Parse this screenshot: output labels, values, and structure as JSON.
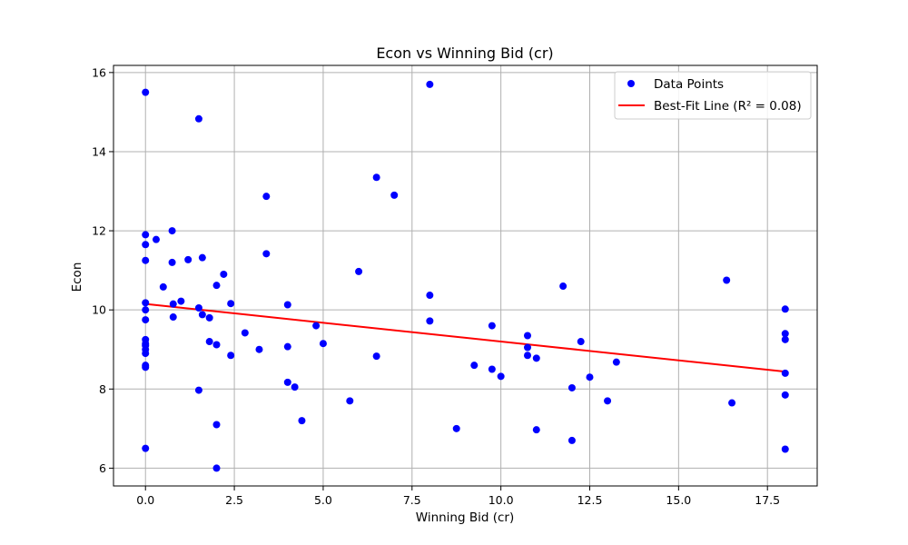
{
  "chart_data": {
    "type": "scatter",
    "title": "Econ vs Winning Bid (cr)",
    "xlabel": "Winning Bid (cr)",
    "ylabel": "Econ",
    "xlim": [
      -0.9,
      18.9
    ],
    "ylim": [
      5.55,
      16.18
    ],
    "xticks": [
      0,
      2.5,
      5,
      7.5,
      10,
      12.5,
      15,
      17.5
    ],
    "xtick_labels": [
      "0.0",
      "2.5",
      "5.0",
      "7.5",
      "10.0",
      "12.5",
      "15.0",
      "17.5"
    ],
    "yticks": [
      6,
      8,
      10,
      12,
      14,
      16
    ],
    "ytick_labels": [
      "6",
      "8",
      "10",
      "12",
      "14",
      "16"
    ],
    "grid": true,
    "legend_position": "top-right",
    "series": [
      {
        "name": "Data Points",
        "kind": "scatter",
        "color": "#0000ff",
        "points": [
          [
            0,
            15.5
          ],
          [
            0,
            11.9
          ],
          [
            0,
            11.65
          ],
          [
            0,
            11.25
          ],
          [
            0,
            10.18
          ],
          [
            0,
            10.0
          ],
          [
            0,
            9.75
          ],
          [
            0,
            9.25
          ],
          [
            0,
            9.15
          ],
          [
            0,
            9.1
          ],
          [
            0,
            9.0
          ],
          [
            0,
            8.9
          ],
          [
            0,
            8.6
          ],
          [
            0,
            8.55
          ],
          [
            0,
            6.5
          ],
          [
            0.3,
            11.78
          ],
          [
            0.5,
            10.58
          ],
          [
            0.75,
            12.0
          ],
          [
            0.75,
            11.2
          ],
          [
            0.78,
            10.15
          ],
          [
            0.78,
            9.82
          ],
          [
            1.0,
            10.22
          ],
          [
            1.2,
            11.27
          ],
          [
            1.5,
            14.83
          ],
          [
            1.5,
            10.05
          ],
          [
            1.5,
            7.97
          ],
          [
            1.6,
            11.32
          ],
          [
            1.6,
            9.88
          ],
          [
            1.8,
            9.8
          ],
          [
            1.8,
            9.2
          ],
          [
            2.0,
            10.62
          ],
          [
            2.0,
            9.12
          ],
          [
            2.0,
            7.1
          ],
          [
            2.0,
            6.0
          ],
          [
            2.2,
            10.9
          ],
          [
            2.4,
            10.16
          ],
          [
            2.4,
            8.85
          ],
          [
            2.8,
            9.42
          ],
          [
            3.2,
            9.0
          ],
          [
            3.4,
            12.87
          ],
          [
            3.4,
            11.42
          ],
          [
            4.0,
            10.13
          ],
          [
            4.0,
            9.07
          ],
          [
            4.0,
            8.17
          ],
          [
            4.2,
            8.05
          ],
          [
            4.4,
            7.2
          ],
          [
            4.8,
            9.6
          ],
          [
            5.0,
            9.15
          ],
          [
            5.75,
            7.7
          ],
          [
            6.0,
            10.97
          ],
          [
            6.5,
            13.35
          ],
          [
            6.5,
            8.83
          ],
          [
            7.0,
            12.9
          ],
          [
            8.0,
            15.7
          ],
          [
            8.0,
            10.37
          ],
          [
            8.0,
            9.72
          ],
          [
            8.75,
            7.0
          ],
          [
            9.25,
            8.6
          ],
          [
            9.75,
            9.6
          ],
          [
            9.75,
            8.5
          ],
          [
            10.0,
            8.32
          ],
          [
            10.75,
            9.35
          ],
          [
            10.75,
            9.05
          ],
          [
            10.75,
            8.85
          ],
          [
            11.0,
            8.78
          ],
          [
            11.0,
            6.97
          ],
          [
            11.75,
            10.6
          ],
          [
            12.0,
            8.03
          ],
          [
            12.0,
            6.7
          ],
          [
            12.25,
            9.2
          ],
          [
            12.5,
            8.3
          ],
          [
            13.0,
            7.7
          ],
          [
            13.25,
            8.68
          ],
          [
            16.35,
            10.75
          ],
          [
            16.5,
            7.65
          ],
          [
            18.0,
            10.02
          ],
          [
            18.0,
            9.4
          ],
          [
            18.0,
            9.25
          ],
          [
            18.0,
            8.4
          ],
          [
            18.0,
            7.85
          ],
          [
            18.0,
            6.48
          ]
        ]
      },
      {
        "name": "Best-Fit Line (R² = 0.08)",
        "kind": "line",
        "color": "#ff0000",
        "x": [
          0,
          18
        ],
        "y": [
          10.15,
          8.44
        ]
      }
    ]
  }
}
